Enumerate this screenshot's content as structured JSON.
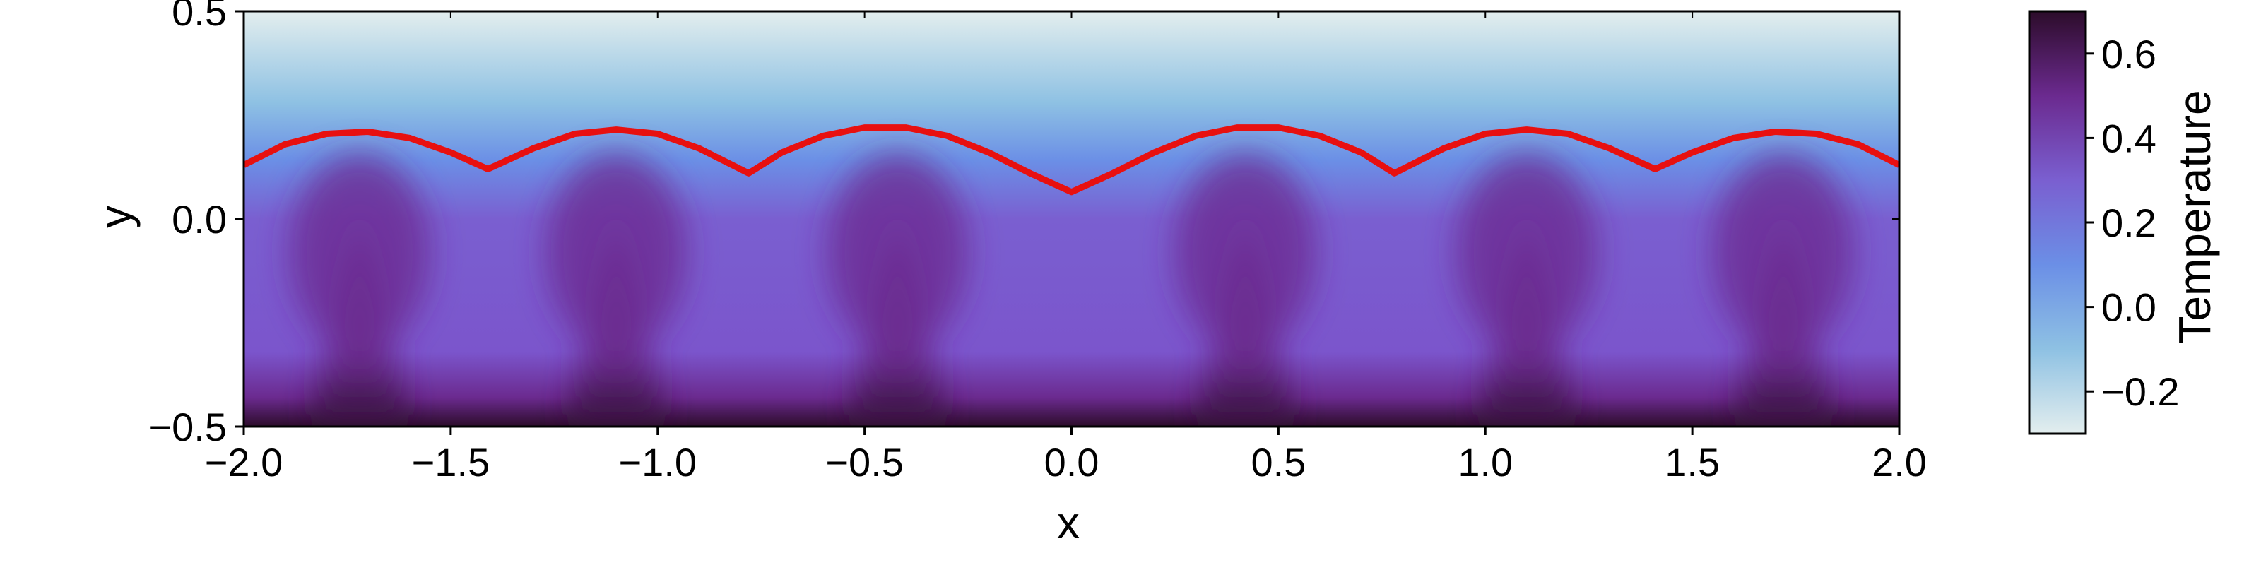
{
  "chart_data": {
    "type": "heatmap",
    "title": "",
    "xlabel": "x",
    "ylabel": "y",
    "xlim": [
      -2.0,
      2.0
    ],
    "ylim": [
      -0.5,
      0.5
    ],
    "x_ticks": [
      -2.0,
      -1.5,
      -1.0,
      -0.5,
      0.0,
      0.5,
      1.0,
      1.5,
      2.0
    ],
    "x_tick_labels": [
      "−2.0",
      "−1.5",
      "−1.0",
      "−0.5",
      "0.0",
      "0.5",
      "1.0",
      "1.5",
      "2.0"
    ],
    "y_ticks": [
      -0.5,
      0.0,
      0.5
    ],
    "y_tick_labels": [
      "−0.5",
      "0.0",
      "0.5"
    ],
    "grid": false,
    "colormap": [
      "#e3eeee",
      "#8ec1e3",
      "#6b8fe6",
      "#7a5fd0",
      "#6b2a8f",
      "#2c0c2a"
    ],
    "colorbar": {
      "label": "Temperature",
      "range": [
        -0.3,
        0.7
      ],
      "ticks": [
        -0.2,
        0.0,
        0.2,
        0.4,
        0.6
      ],
      "tick_labels": [
        "−0.2",
        "0.0",
        "0.2",
        "0.4",
        "0.6"
      ]
    },
    "contour_line": {
      "color": "#e81010",
      "x": [
        -2.0,
        -1.9,
        -1.8,
        -1.7,
        -1.6,
        -1.5,
        -1.41,
        -1.3,
        -1.2,
        -1.1,
        -1.0,
        -0.9,
        -0.78,
        -0.7,
        -0.6,
        -0.5,
        -0.4,
        -0.3,
        -0.2,
        -0.1,
        0.0,
        0.1,
        0.2,
        0.3,
        0.4,
        0.5,
        0.6,
        0.7,
        0.78,
        0.9,
        1.0,
        1.1,
        1.2,
        1.3,
        1.41,
        1.5,
        1.6,
        1.7,
        1.8,
        1.9,
        2.0
      ],
      "y": [
        0.13,
        0.18,
        0.205,
        0.21,
        0.195,
        0.16,
        0.12,
        0.17,
        0.205,
        0.215,
        0.205,
        0.17,
        0.11,
        0.16,
        0.2,
        0.22,
        0.22,
        0.2,
        0.16,
        0.11,
        0.065,
        0.11,
        0.16,
        0.2,
        0.22,
        0.22,
        0.2,
        0.16,
        0.11,
        0.17,
        0.205,
        0.215,
        0.205,
        0.17,
        0.12,
        0.16,
        0.195,
        0.21,
        0.205,
        0.18,
        0.13
      ]
    },
    "plume_centers": [
      -1.72,
      -1.1,
      -0.42,
      0.42,
      1.1,
      1.72
    ]
  }
}
